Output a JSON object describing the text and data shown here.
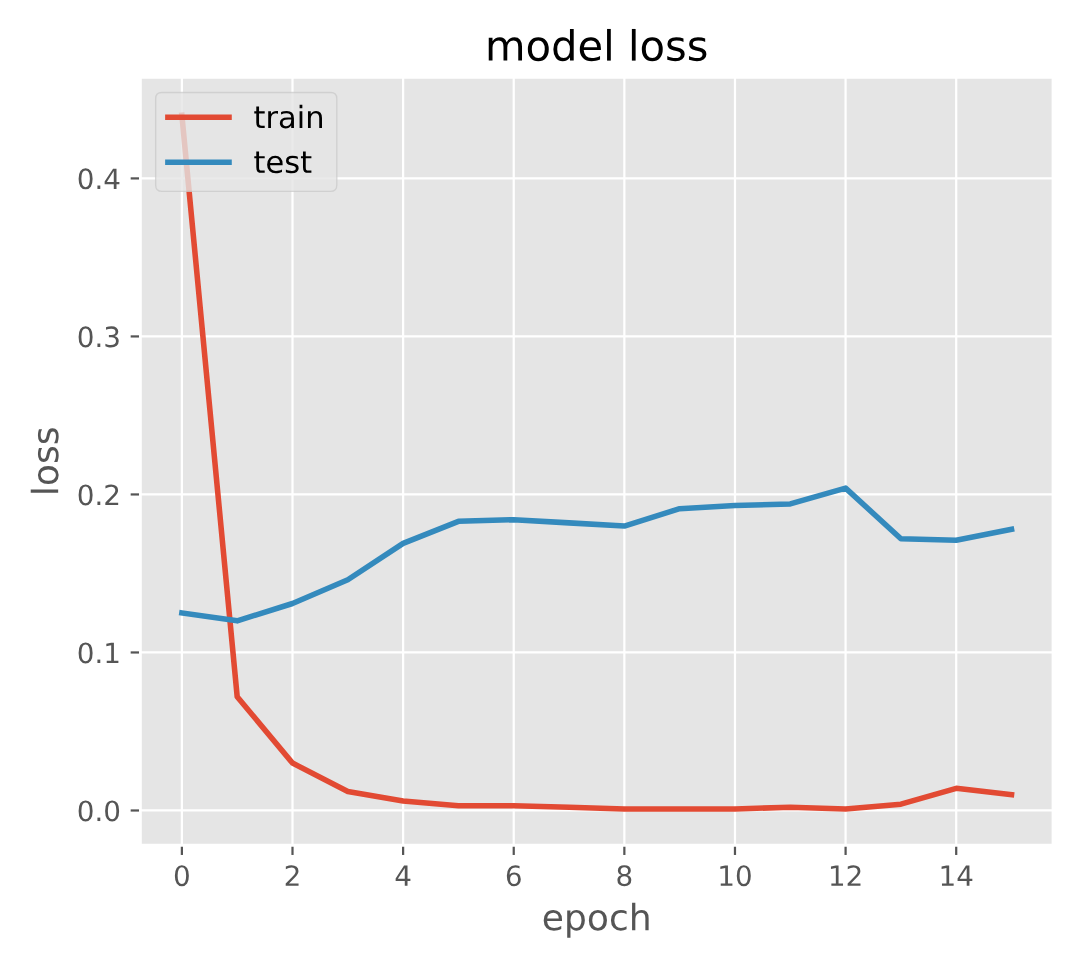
{
  "chart_data": {
    "type": "line",
    "title": "model loss",
    "xlabel": "epoch",
    "ylabel": "loss",
    "x": [
      0,
      1,
      2,
      3,
      4,
      5,
      6,
      7,
      8,
      9,
      10,
      11,
      12,
      13,
      14,
      15
    ],
    "series": [
      {
        "name": "train",
        "color": "#e24a33",
        "values": [
          0.44,
          0.072,
          0.03,
          0.012,
          0.006,
          0.003,
          0.003,
          0.002,
          0.001,
          0.001,
          0.001,
          0.002,
          0.001,
          0.004,
          0.014,
          0.01
        ]
      },
      {
        "name": "test",
        "color": "#348abd",
        "values": [
          0.125,
          0.12,
          0.131,
          0.146,
          0.169,
          0.183,
          0.184,
          0.182,
          0.18,
          0.191,
          0.193,
          0.194,
          0.204,
          0.172,
          0.171,
          0.178
        ]
      }
    ],
    "xlim": [
      -0.75,
      15.75
    ],
    "ylim": [
      -0.022,
      0.464
    ],
    "xticks": [
      0,
      2,
      4,
      6,
      8,
      10,
      12,
      14
    ],
    "yticks": [
      {
        "value": 0,
        "label": "0.0"
      },
      0.1,
      0.2,
      0.3,
      0.4
    ],
    "grid": true,
    "legend": "top left",
    "marker": "none",
    "line_style": "solid"
  }
}
